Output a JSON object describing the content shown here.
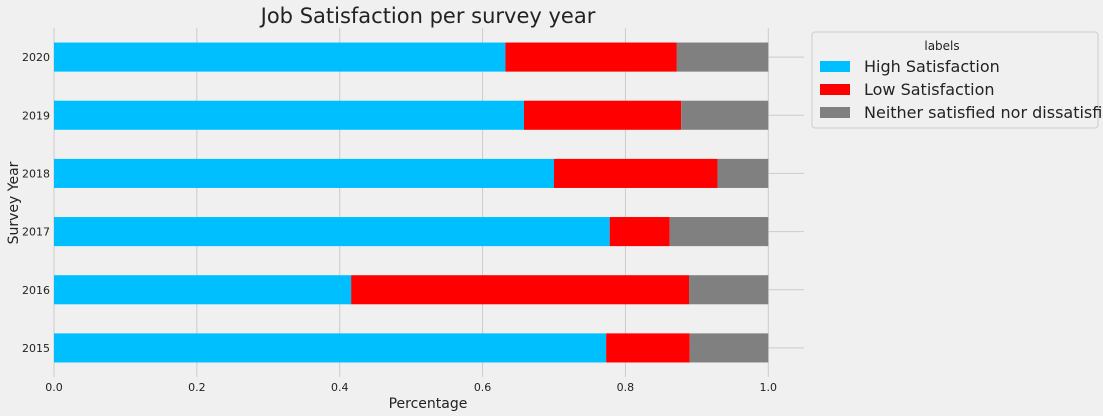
{
  "chart_data": {
    "type": "bar",
    "orientation": "horizontal",
    "stacked": true,
    "title": "Job Satisfaction per survey year",
    "xlabel": "Percentage",
    "ylabel": "Survey Year",
    "xlim": [
      0,
      1.05
    ],
    "xticks": [
      "0.0",
      "0.2",
      "0.4",
      "0.6",
      "0.8",
      "1.0"
    ],
    "categories": [
      "2020",
      "2019",
      "2018",
      "2017",
      "2016",
      "2015"
    ],
    "series": [
      {
        "name": "High Satisfaction",
        "color": "#00bfff",
        "values": [
          0.632,
          0.658,
          0.7,
          0.778,
          0.416,
          0.773
        ]
      },
      {
        "name": "Low Satisfaction",
        "color": "#ff0000",
        "values": [
          0.24,
          0.22,
          0.229,
          0.084,
          0.473,
          0.117
        ]
      },
      {
        "name": "Neither satisfied nor dissatisfied",
        "color": "#808080",
        "values": [
          0.128,
          0.122,
          0.071,
          0.138,
          0.111,
          0.11
        ]
      }
    ],
    "legend": {
      "title": "labels",
      "placement": "outside-top-right"
    },
    "grid": true
  }
}
